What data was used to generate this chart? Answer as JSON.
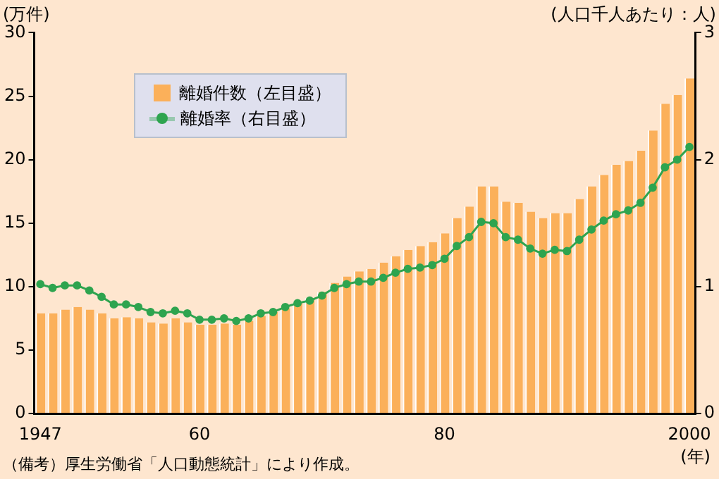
{
  "chart_data": {
    "type": "bar",
    "ylabel": "(万件)",
    "y2label": "(人口千人あたり：人)",
    "xlabel": "(年)",
    "categories": [
      "1947",
      null,
      null,
      null,
      null,
      null,
      null,
      null,
      null,
      null,
      null,
      null,
      null,
      "60",
      null,
      null,
      null,
      null,
      null,
      null,
      null,
      null,
      null,
      null,
      null,
      null,
      null,
      null,
      null,
      null,
      null,
      null,
      null,
      "80",
      null,
      null,
      null,
      null,
      null,
      null,
      null,
      null,
      null,
      null,
      null,
      null,
      null,
      null,
      null,
      null,
      null,
      null,
      null,
      "2000"
    ],
    "series": [
      {
        "name": "離婚件数（左目盛）",
        "color": "#fbb05a",
        "values": [
          7.9,
          7.9,
          8.2,
          8.4,
          8.2,
          7.9,
          7.5,
          7.6,
          7.5,
          7.2,
          7.1,
          7.5,
          7.2,
          7.0,
          7.0,
          7.1,
          7.0,
          7.3,
          7.7,
          8.0,
          8.3,
          8.7,
          9.1,
          9.6,
          10.3,
          10.8,
          11.2,
          11.4,
          11.9,
          12.4,
          12.9,
          13.2,
          13.5,
          14.2,
          15.4,
          16.3,
          17.9,
          17.9,
          16.7,
          16.6,
          15.9,
          15.4,
          15.8,
          15.8,
          16.9,
          17.9,
          18.8,
          19.6,
          19.9,
          20.7,
          22.3,
          24.4,
          25.1,
          26.4
        ]
      },
      {
        "name": "離婚率（右目盛）",
        "type": "line",
        "axis": "y2",
        "color": "#2ea44f",
        "values": [
          1.02,
          0.99,
          1.01,
          1.01,
          0.97,
          0.92,
          0.86,
          0.86,
          0.84,
          0.8,
          0.79,
          0.81,
          0.79,
          0.74,
          0.74,
          0.75,
          0.73,
          0.75,
          0.79,
          0.8,
          0.84,
          0.87,
          0.89,
          0.93,
          0.99,
          1.02,
          1.04,
          1.04,
          1.07,
          1.11,
          1.14,
          1.15,
          1.17,
          1.22,
          1.32,
          1.39,
          1.51,
          1.5,
          1.39,
          1.37,
          1.3,
          1.26,
          1.29,
          1.28,
          1.37,
          1.45,
          1.52,
          1.57,
          1.6,
          1.66,
          1.78,
          1.94,
          2.0,
          2.1
        ]
      }
    ],
    "ylim": [
      0,
      30
    ],
    "yticks": [
      0,
      5,
      10,
      15,
      20,
      25,
      30
    ],
    "y2lim": [
      0,
      3
    ],
    "y2ticks": [
      0,
      1,
      2,
      3
    ],
    "marker": "circle",
    "legend": "top left",
    "annotations": [
      "（備考）厚生労働省「人口動態統計」により作成。"
    ]
  }
}
